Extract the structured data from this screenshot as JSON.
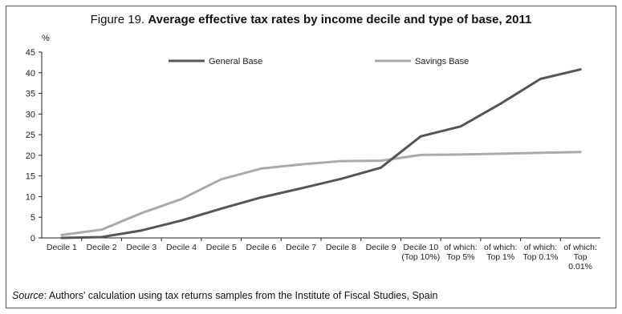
{
  "figure": {
    "title_prefix": "Figure 19.",
    "title_main": "Average effective tax rates by income decile and type of base, 2011",
    "unit_label": "%"
  },
  "source": {
    "label": "Source",
    "text": ": Authors' calculation using tax returns samples from the Institute of Fiscal Studies, Spain"
  },
  "chart_data": {
    "type": "line",
    "title": "Figure 19. Average effective tax rates by income decile and type of base, 2011",
    "ylabel": "%",
    "ylim": [
      0,
      45
    ],
    "yticks": [
      0,
      5,
      10,
      15,
      20,
      25,
      30,
      35,
      40,
      45
    ],
    "grid": false,
    "legend_position": "top",
    "categories": [
      "Decile 1",
      "Decile 2",
      "Decile 3",
      "Decile 4",
      "Decile 5",
      "Decile 6",
      "Decile 7",
      "Decile 8",
      "Decile 9",
      "Decile 10\n(Top 10%)",
      "of which:\nTop 5%",
      "of which:\nTop 1%",
      "of which:\nTop 0.1%",
      "of which:\nTop\n0.01%"
    ],
    "series": [
      {
        "name": "General Base",
        "color": "#555555",
        "values": [
          0,
          0.2,
          1.8,
          4.2,
          7.1,
          9.8,
          12.0,
          14.3,
          17.0,
          24.6,
          27.0,
          32.5,
          38.5,
          40.8
        ]
      },
      {
        "name": "Savings Base",
        "color": "#aaaaaa",
        "values": [
          0.7,
          2.0,
          6.0,
          9.4,
          14.2,
          16.8,
          17.8,
          18.6,
          18.7,
          20.1,
          20.2,
          20.4,
          20.6,
          20.8
        ]
      }
    ]
  }
}
